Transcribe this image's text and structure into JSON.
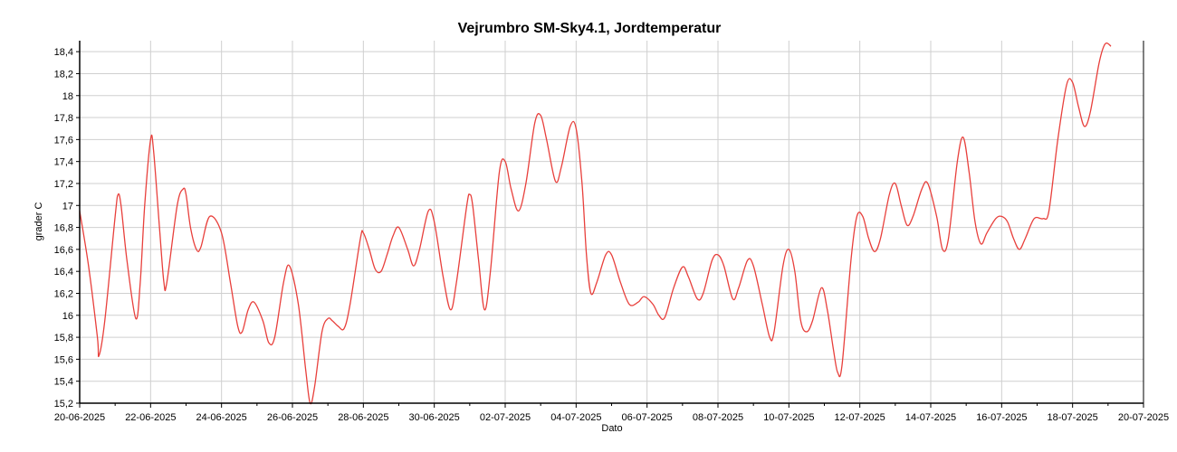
{
  "chart_data": {
    "type": "line",
    "title": "Vejrumbro SM-Sky4.1, Jordtemperatur",
    "xlabel": "Dato",
    "ylabel": "grader C",
    "xlim": [
      "2025-06-20",
      "2025-07-20"
    ],
    "ylim": [
      15.2,
      18.5
    ],
    "x_ticks": [
      "20-06-2025",
      "22-06-2025",
      "24-06-2025",
      "26-06-2025",
      "28-06-2025",
      "30-06-2025",
      "02-07-2025",
      "04-07-2025",
      "06-07-2025",
      "08-07-2025",
      "10-07-2025",
      "12-07-2025",
      "14-07-2025",
      "16-07-2025",
      "18-07-2025",
      "20-07-2025"
    ],
    "y_ticks": [
      "15,2",
      "15,4",
      "15,6",
      "15,8",
      "16",
      "16,2",
      "16,4",
      "16,6",
      "16,8",
      "17",
      "17,2",
      "17,4",
      "17,6",
      "17,8",
      "18",
      "18,2",
      "18,4"
    ],
    "grid": true,
    "series": [
      {
        "color": "#e8403c",
        "points": [
          [
            "2025-06-20 00:00",
            16.95
          ],
          [
            "2025-06-20 06:00",
            16.45
          ],
          [
            "2025-06-20 12:00",
            15.8
          ],
          [
            "2025-06-20 13:00",
            15.63
          ],
          [
            "2025-06-20 17:00",
            15.95
          ],
          [
            "2025-06-21 00:00",
            16.9
          ],
          [
            "2025-06-21 02:00",
            17.1
          ],
          [
            "2025-06-21 04:00",
            17.0
          ],
          [
            "2025-06-21 08:00",
            16.5
          ],
          [
            "2025-06-21 14:00",
            15.97
          ],
          [
            "2025-06-21 17:00",
            16.3
          ],
          [
            "2025-06-21 20:00",
            17.0
          ],
          [
            "2025-06-22 00:00",
            17.6
          ],
          [
            "2025-06-22 02:00",
            17.5
          ],
          [
            "2025-06-22 06:00",
            16.8
          ],
          [
            "2025-06-22 09:00",
            16.3
          ],
          [
            "2025-06-22 11:00",
            16.3
          ],
          [
            "2025-06-22 18:00",
            17.0
          ],
          [
            "2025-06-22 22:00",
            17.15
          ],
          [
            "2025-06-23 00:00",
            17.1
          ],
          [
            "2025-06-23 03:00",
            16.8
          ],
          [
            "2025-06-23 07:00",
            16.6
          ],
          [
            "2025-06-23 10:00",
            16.62
          ],
          [
            "2025-06-23 16:00",
            16.9
          ],
          [
            "2025-06-24 00:00",
            16.75
          ],
          [
            "2025-06-24 06:00",
            16.3
          ],
          [
            "2025-06-24 11:00",
            15.9
          ],
          [
            "2025-06-24 14:00",
            15.85
          ],
          [
            "2025-06-24 18:00",
            16.05
          ],
          [
            "2025-06-24 22:00",
            16.12
          ],
          [
            "2025-06-25 04:00",
            15.95
          ],
          [
            "2025-06-25 08:00",
            15.75
          ],
          [
            "2025-06-25 12:00",
            15.8
          ],
          [
            "2025-06-25 18:00",
            16.3
          ],
          [
            "2025-06-25 22:00",
            16.45
          ],
          [
            "2025-06-26 04:00",
            16.1
          ],
          [
            "2025-06-26 09:00",
            15.5
          ],
          [
            "2025-06-26 12:00",
            15.2
          ],
          [
            "2025-06-26 15:00",
            15.35
          ],
          [
            "2025-06-26 20:00",
            15.85
          ],
          [
            "2025-06-27 00:00",
            15.97
          ],
          [
            "2025-06-27 03:00",
            15.95
          ],
          [
            "2025-06-27 07:00",
            15.9
          ],
          [
            "2025-06-27 11:00",
            15.88
          ],
          [
            "2025-06-27 15:00",
            16.1
          ],
          [
            "2025-06-27 22:00",
            16.7
          ],
          [
            "2025-06-28 00:00",
            16.75
          ],
          [
            "2025-06-28 04:00",
            16.6
          ],
          [
            "2025-06-28 08:00",
            16.42
          ],
          [
            "2025-06-28 12:00",
            16.4
          ],
          [
            "2025-06-28 16:00",
            16.55
          ],
          [
            "2025-06-28 20:00",
            16.72
          ],
          [
            "2025-06-29 00:00",
            16.8
          ],
          [
            "2025-06-29 06:00",
            16.6
          ],
          [
            "2025-06-29 10:00",
            16.45
          ],
          [
            "2025-06-29 14:00",
            16.6
          ],
          [
            "2025-06-29 20:00",
            16.95
          ],
          [
            "2025-06-30 00:00",
            16.85
          ],
          [
            "2025-06-30 06:00",
            16.35
          ],
          [
            "2025-06-30 11:00",
            16.05
          ],
          [
            "2025-06-30 15:00",
            16.3
          ],
          [
            "2025-06-30 22:00",
            17.0
          ],
          [
            "2025-07-01 00:00",
            17.1
          ],
          [
            "2025-07-01 02:00",
            17.0
          ],
          [
            "2025-07-01 06:00",
            16.5
          ],
          [
            "2025-07-01 10:00",
            16.05
          ],
          [
            "2025-07-01 14:00",
            16.4
          ],
          [
            "2025-07-01 20:00",
            17.3
          ],
          [
            "2025-07-02 00:00",
            17.4
          ],
          [
            "2025-07-02 04:00",
            17.15
          ],
          [
            "2025-07-02 09:00",
            16.95
          ],
          [
            "2025-07-02 14:00",
            17.2
          ],
          [
            "2025-07-02 20:00",
            17.75
          ],
          [
            "2025-07-03 00:00",
            17.82
          ],
          [
            "2025-07-03 04:00",
            17.6
          ],
          [
            "2025-07-03 10:00",
            17.22
          ],
          [
            "2025-07-03 14:00",
            17.35
          ],
          [
            "2025-07-03 20:00",
            17.72
          ],
          [
            "2025-07-04 00:00",
            17.7
          ],
          [
            "2025-07-04 04:00",
            17.2
          ],
          [
            "2025-07-04 07:00",
            16.55
          ],
          [
            "2025-07-04 10:00",
            16.2
          ],
          [
            "2025-07-04 14:00",
            16.3
          ],
          [
            "2025-07-04 20:00",
            16.55
          ],
          [
            "2025-07-05 00:00",
            16.55
          ],
          [
            "2025-07-05 06:00",
            16.3
          ],
          [
            "2025-07-05 12:00",
            16.1
          ],
          [
            "2025-07-05 18:00",
            16.12
          ],
          [
            "2025-07-05 22:00",
            16.17
          ],
          [
            "2025-07-06 04:00",
            16.1
          ],
          [
            "2025-07-06 08:00",
            16.0
          ],
          [
            "2025-07-06 12:00",
            15.98
          ],
          [
            "2025-07-06 18:00",
            16.25
          ],
          [
            "2025-07-07 00:00",
            16.44
          ],
          [
            "2025-07-07 04:00",
            16.35
          ],
          [
            "2025-07-07 10:00",
            16.15
          ],
          [
            "2025-07-07 14:00",
            16.2
          ],
          [
            "2025-07-07 20:00",
            16.5
          ],
          [
            "2025-07-08 00:00",
            16.55
          ],
          [
            "2025-07-08 04:00",
            16.45
          ],
          [
            "2025-07-08 10:00",
            16.15
          ],
          [
            "2025-07-08 14:00",
            16.25
          ],
          [
            "2025-07-08 20:00",
            16.5
          ],
          [
            "2025-07-09 00:00",
            16.45
          ],
          [
            "2025-07-09 06:00",
            16.1
          ],
          [
            "2025-07-09 11:00",
            15.8
          ],
          [
            "2025-07-09 14:00",
            15.85
          ],
          [
            "2025-07-09 20:00",
            16.45
          ],
          [
            "2025-07-10 00:00",
            16.6
          ],
          [
            "2025-07-10 04:00",
            16.4
          ],
          [
            "2025-07-10 08:00",
            15.95
          ],
          [
            "2025-07-10 12:00",
            15.85
          ],
          [
            "2025-07-10 16:00",
            15.95
          ],
          [
            "2025-07-10 22:00",
            16.25
          ],
          [
            "2025-07-11 02:00",
            16.05
          ],
          [
            "2025-07-11 06:00",
            15.7
          ],
          [
            "2025-07-11 09:00",
            15.48
          ],
          [
            "2025-07-11 12:00",
            15.55
          ],
          [
            "2025-07-11 18:00",
            16.5
          ],
          [
            "2025-07-11 22:00",
            16.9
          ],
          [
            "2025-07-12 02:00",
            16.9
          ],
          [
            "2025-07-12 06:00",
            16.7
          ],
          [
            "2025-07-12 10:00",
            16.58
          ],
          [
            "2025-07-12 14:00",
            16.7
          ],
          [
            "2025-07-12 20:00",
            17.1
          ],
          [
            "2025-07-13 00:00",
            17.2
          ],
          [
            "2025-07-13 04:00",
            17.0
          ],
          [
            "2025-07-13 08:00",
            16.82
          ],
          [
            "2025-07-13 12:00",
            16.9
          ],
          [
            "2025-07-13 18:00",
            17.15
          ],
          [
            "2025-07-13 22:00",
            17.2
          ],
          [
            "2025-07-14 04:00",
            16.9
          ],
          [
            "2025-07-14 08:00",
            16.6
          ],
          [
            "2025-07-14 12:00",
            16.7
          ],
          [
            "2025-07-14 18:00",
            17.4
          ],
          [
            "2025-07-14 22:00",
            17.62
          ],
          [
            "2025-07-15 02:00",
            17.3
          ],
          [
            "2025-07-15 06:00",
            16.85
          ],
          [
            "2025-07-15 10:00",
            16.65
          ],
          [
            "2025-07-15 14:00",
            16.75
          ],
          [
            "2025-07-15 20:00",
            16.88
          ],
          [
            "2025-07-16 00:00",
            16.9
          ],
          [
            "2025-07-16 04:00",
            16.85
          ],
          [
            "2025-07-16 08:00",
            16.7
          ],
          [
            "2025-07-16 12:00",
            16.6
          ],
          [
            "2025-07-16 16:00",
            16.7
          ],
          [
            "2025-07-16 22:00",
            16.88
          ],
          [
            "2025-07-17 04:00",
            16.88
          ],
          [
            "2025-07-17 08:00",
            16.95
          ],
          [
            "2025-07-17 14:00",
            17.6
          ],
          [
            "2025-07-17 20:00",
            18.1
          ],
          [
            "2025-07-18 00:00",
            18.12
          ],
          [
            "2025-07-18 04:00",
            17.9
          ],
          [
            "2025-07-18 08:00",
            17.72
          ],
          [
            "2025-07-18 12:00",
            17.85
          ],
          [
            "2025-07-18 18:00",
            18.3
          ],
          [
            "2025-07-18 22:00",
            18.47
          ],
          [
            "2025-07-19 02:00",
            18.45
          ]
        ]
      }
    ]
  },
  "style": {
    "line_color": "#e8403c",
    "grid_color": "#cfcfcf",
    "axis_color": "#000000"
  }
}
